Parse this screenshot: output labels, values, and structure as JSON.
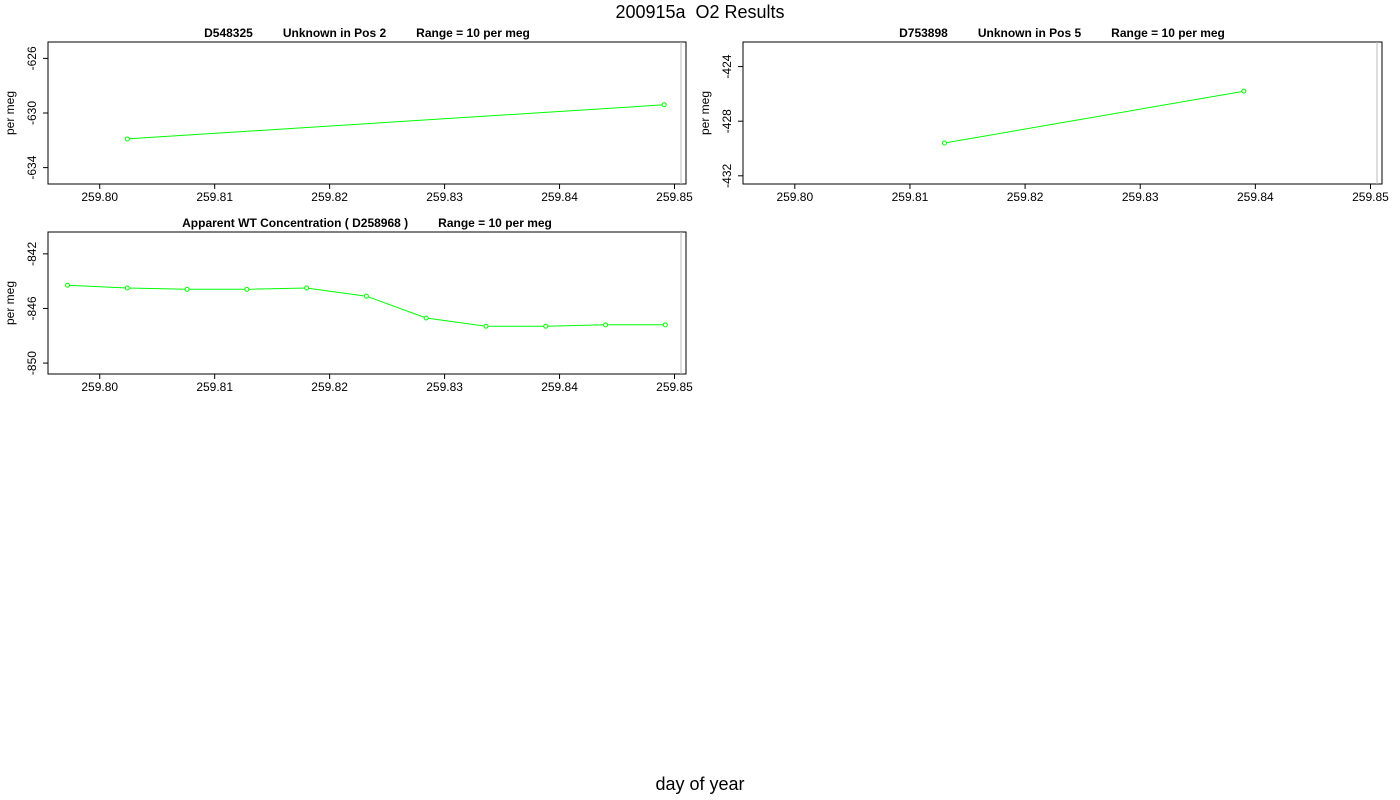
{
  "page": {
    "title": "200915a  O2 Results",
    "xlabel": "day of year"
  },
  "colors": {
    "series": "#00ff00",
    "axis": "#000000"
  },
  "chart_data": [
    {
      "type": "line",
      "title_parts": [
        "D548325",
        "Unknown in Pos 2",
        "Range = 10 per meg"
      ],
      "ylabel": "per meg",
      "xlabel": "",
      "xlim": [
        259.7955,
        259.851
      ],
      "ylim": [
        -635.2,
        -624.8
      ],
      "x_ticks": [
        259.8,
        259.81,
        259.82,
        259.83,
        259.84,
        259.85
      ],
      "x_tick_labels": [
        "259.80",
        "259.81",
        "259.82",
        "259.83",
        "259.84",
        "259.85"
      ],
      "y_ticks": [
        -626,
        -630,
        -634
      ],
      "y_tick_labels": [
        "-626",
        "-630",
        "-634"
      ],
      "x": [
        259.8024,
        259.8491
      ],
      "y": [
        -631.9,
        -629.4
      ]
    },
    {
      "type": "line",
      "title_parts": [
        "D753898",
        "Unknown in Pos 5",
        "Range = 10 per meg"
      ],
      "ylabel": "per meg",
      "xlabel": "",
      "xlim": [
        259.7955,
        259.851
      ],
      "ylim": [
        -432.6,
        -422.2
      ],
      "x_ticks": [
        259.8,
        259.81,
        259.82,
        259.83,
        259.84,
        259.85
      ],
      "x_tick_labels": [
        "259.80",
        "259.81",
        "259.82",
        "259.83",
        "259.84",
        "259.85"
      ],
      "y_ticks": [
        -424,
        -428,
        -432
      ],
      "y_tick_labels": [
        "-424",
        "-428",
        "-432"
      ],
      "x": [
        259.813,
        259.839
      ],
      "y": [
        -429.6,
        -425.8
      ]
    },
    {
      "type": "line",
      "title_parts": [
        "Apparent WT Concentration ( D258968 )",
        "Range = 10 per meg"
      ],
      "ylabel": "per meg",
      "xlabel": "",
      "xlim": [
        259.7955,
        259.851
      ],
      "ylim": [
        -850.8,
        -840.4
      ],
      "x_ticks": [
        259.8,
        259.81,
        259.82,
        259.83,
        259.84,
        259.85
      ],
      "x_tick_labels": [
        "259.80",
        "259.81",
        "259.82",
        "259.83",
        "259.84",
        "259.85"
      ],
      "y_ticks": [
        -842,
        -846,
        -850
      ],
      "y_tick_labels": [
        "-842",
        "-846",
        "-850"
      ],
      "x": [
        259.7972,
        259.8024,
        259.8076,
        259.8128,
        259.818,
        259.8232,
        259.8284,
        259.8336,
        259.8388,
        259.844,
        259.8492
      ],
      "y": [
        -844.3,
        -844.5,
        -844.6,
        -844.6,
        -844.5,
        -845.1,
        -846.7,
        -847.3,
        -847.3,
        -847.2,
        -847.2
      ]
    }
  ]
}
